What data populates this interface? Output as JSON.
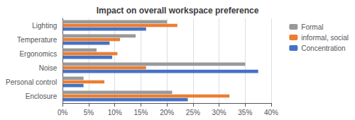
{
  "chart_data": {
    "type": "bar",
    "orientation": "horizontal",
    "title": "Impact on overall workspace preference",
    "categories": [
      "Lighting",
      "Temperature",
      "Ergonomics",
      "Noise",
      "Personal control",
      "Enclosure"
    ],
    "series": [
      {
        "name": "Formal",
        "color": "#999999",
        "values": [
          0.2,
          0.14,
          0.065,
          0.35,
          0.04,
          0.21
        ]
      },
      {
        "name": "informal, social",
        "color": "#ED7D31",
        "values": [
          0.22,
          0.11,
          0.105,
          0.16,
          0.08,
          0.32
        ]
      },
      {
        "name": "Concentration",
        "color": "#4472C4",
        "values": [
          0.16,
          0.09,
          0.095,
          0.375,
          0.04,
          0.24
        ]
      }
    ],
    "xlim": [
      0,
      0.4
    ],
    "xticks": [
      {
        "value": 0,
        "label": "0%"
      },
      {
        "value": 0.05,
        "label": "5%"
      },
      {
        "value": 0.1,
        "label": "10%"
      },
      {
        "value": 0.15,
        "label": "15%"
      },
      {
        "value": 0.2,
        "label": "20%"
      },
      {
        "value": 0.25,
        "label": "25%"
      },
      {
        "value": 0.3,
        "label": "30%"
      },
      {
        "value": 0.35,
        "label": "35%"
      },
      {
        "value": 0.4,
        "label": "40%"
      }
    ],
    "grid": true,
    "legend": "upper right"
  }
}
